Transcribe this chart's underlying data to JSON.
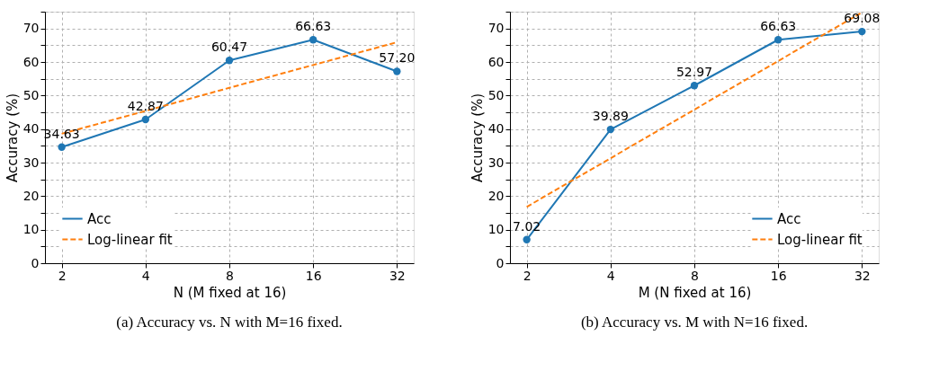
{
  "chart_data": [
    {
      "type": "line",
      "xlabel": "N (M fixed at 16)",
      "ylabel": "Accuracy (%)",
      "categories": [
        "2",
        "4",
        "8",
        "16",
        "32"
      ],
      "series": [
        {
          "name": "Acc",
          "color": "#1f77b4",
          "values": [
            34.63,
            42.87,
            60.47,
            66.63,
            57.2
          ],
          "value_labels": [
            "34.63",
            "42.87",
            "60.47",
            "66.63",
            "57.20"
          ],
          "marker": "circle",
          "line_style": "solid"
        },
        {
          "name": "Log-linear fit",
          "color": "#ff7f0e",
          "values": [
            38.6,
            45.4,
            52.3,
            59.1,
            65.9
          ],
          "marker": "none",
          "line_style": "dashed"
        }
      ],
      "ylim": [
        0,
        75
      ],
      "yticks": [
        0,
        {
          "value": 5,
          "label": null
        },
        10,
        {
          "value": 15,
          "label": null
        },
        20,
        {
          "value": 25,
          "label": null
        },
        30,
        {
          "value": 35,
          "label": null
        },
        40,
        {
          "value": 45,
          "label": null
        },
        50,
        {
          "value": 55,
          "label": null
        },
        60,
        {
          "value": 65,
          "label": null
        },
        70,
        {
          "value": 75,
          "label": null
        }
      ],
      "grid": true,
      "legend": "bottom left",
      "annotations": [
        "(a) Accuracy vs. N with M=16 fixed."
      ]
    },
    {
      "type": "line",
      "xlabel": "M (N fixed at 16)",
      "ylabel": "Accuracy (%)",
      "categories": [
        "2",
        "4",
        "8",
        "16",
        "32"
      ],
      "series": [
        {
          "name": "Acc",
          "color": "#1f77b4",
          "values": [
            7.02,
            39.89,
            52.97,
            66.63,
            69.08
          ],
          "value_labels": [
            "7.02",
            "39.89",
            "52.97",
            "66.63",
            "69.08"
          ],
          "marker": "circle",
          "line_style": "solid"
        },
        {
          "name": "Log-linear fit",
          "color": "#ff7f0e",
          "values": [
            16.8,
            31.3,
            45.8,
            60.3,
            74.8
          ],
          "marker": "none",
          "line_style": "dashed"
        }
      ],
      "ylim": [
        0,
        75
      ],
      "yticks": [
        0,
        {
          "value": 5,
          "label": null
        },
        10,
        {
          "value": 15,
          "label": null
        },
        20,
        {
          "value": 25,
          "label": null
        },
        30,
        {
          "value": 35,
          "label": null
        },
        40,
        {
          "value": 45,
          "label": null
        },
        50,
        {
          "value": 55,
          "label": null
        },
        60,
        {
          "value": 65,
          "label": null
        },
        70,
        {
          "value": 75,
          "label": null
        }
      ],
      "grid": true,
      "legend": "bottom right",
      "annotations": [
        "(b) Accuracy vs. M with N=16 fixed."
      ]
    }
  ]
}
